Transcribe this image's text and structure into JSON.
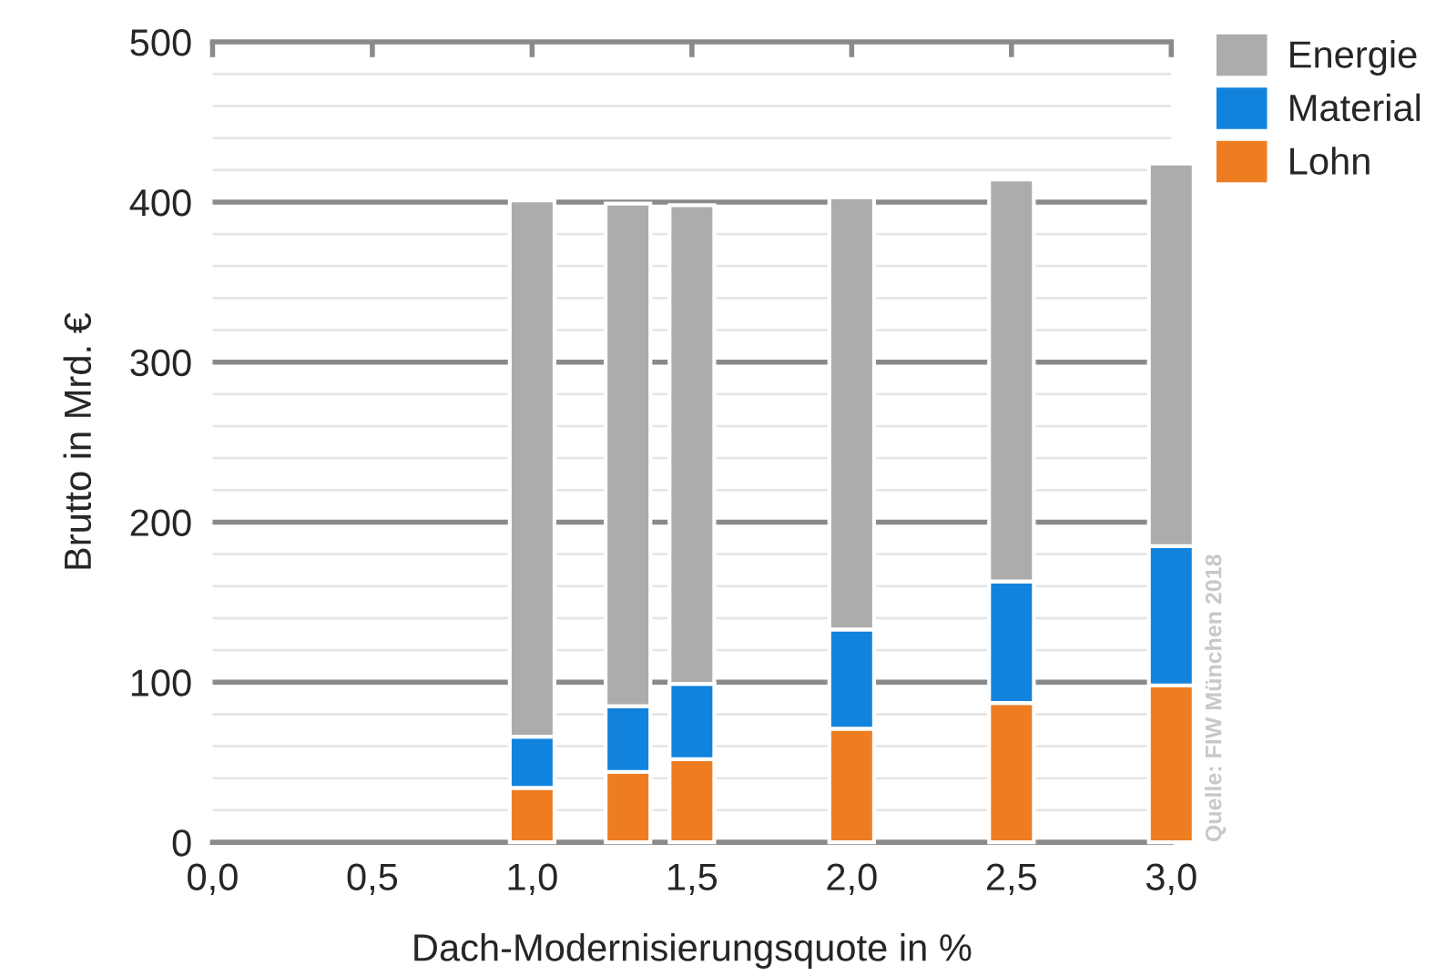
{
  "chart_data": {
    "type": "bar",
    "stacked": true,
    "xlabel": "Dach-Modernisierungsquote in %",
    "ylabel": "Brutto in Mrd. €",
    "x": [
      1.0,
      1.3,
      1.5,
      2.0,
      2.5,
      3.0
    ],
    "series": [
      {
        "name": "Lohn",
        "color": "#ee7d22",
        "values": [
          34,
          44,
          52,
          71,
          87,
          98
        ]
      },
      {
        "name": "Material",
        "color": "#1283dd",
        "values": [
          32,
          41,
          47,
          62,
          76,
          87
        ]
      },
      {
        "name": "Energie",
        "color": "#acacac",
        "values": [
          335,
          314,
          299,
          270,
          251,
          239
        ]
      }
    ],
    "xlim": [
      0,
      3.0
    ],
    "xticks": [
      {
        "value": 0,
        "label": "0,0"
      },
      {
        "value": 0.5,
        "label": "0,5"
      },
      {
        "value": 1.0,
        "label": "1,0"
      },
      {
        "value": 1.5,
        "label": "1,5"
      },
      {
        "value": 2.0,
        "label": "2,0"
      },
      {
        "value": 2.5,
        "label": "2,5"
      },
      {
        "value": 3.0,
        "label": "3,0"
      }
    ],
    "ylim": [
      0,
      500
    ],
    "yticks": [
      0,
      100,
      200,
      300,
      400,
      500
    ],
    "grid": "y",
    "legend": "top right",
    "annotations": [
      "Quelle: FIW München 2018"
    ]
  }
}
